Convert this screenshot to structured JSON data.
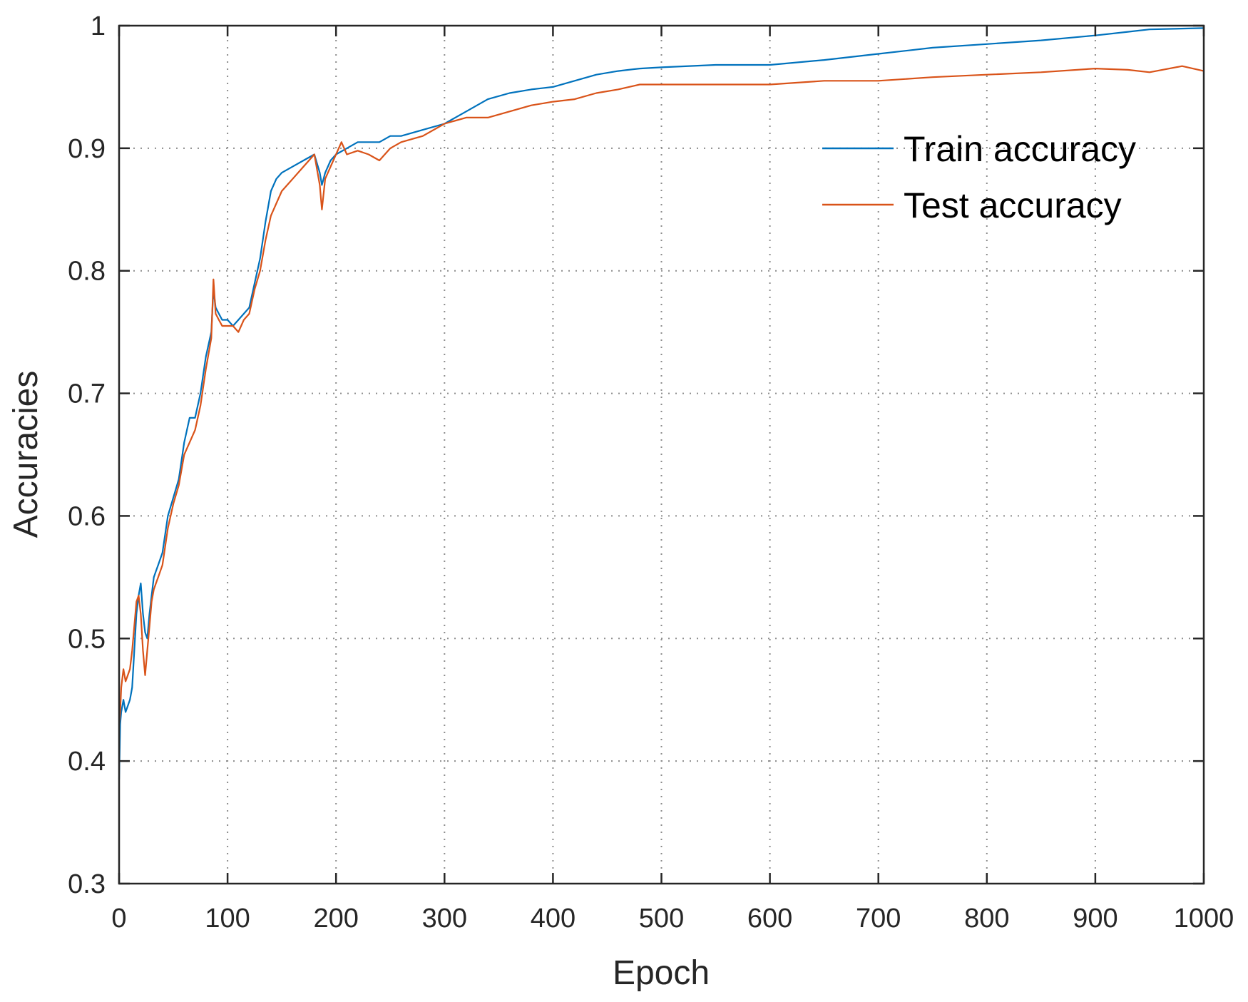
{
  "chart_data": {
    "type": "line",
    "title": "",
    "xlabel": "Epoch",
    "ylabel": "Accuracies",
    "xlim": [
      0,
      1000
    ],
    "ylim": [
      0.3,
      1
    ],
    "xticks": [
      0,
      100,
      200,
      300,
      400,
      500,
      600,
      700,
      800,
      900,
      1000
    ],
    "yticks": [
      0.3,
      0.4,
      0.5,
      0.6,
      0.7,
      0.8,
      0.9,
      1
    ],
    "grid": true,
    "legend_position": "top-right",
    "series": [
      {
        "name": "Train accuracy",
        "color": "#0072bd",
        "x": [
          0,
          1,
          2,
          4,
          6,
          8,
          10,
          12,
          14,
          16,
          18,
          20,
          22,
          24,
          26,
          28,
          30,
          32,
          34,
          36,
          38,
          40,
          45,
          50,
          55,
          60,
          65,
          70,
          75,
          80,
          85,
          87,
          89,
          92,
          95,
          100,
          105,
          110,
          115,
          120,
          125,
          130,
          135,
          140,
          145,
          150,
          160,
          170,
          180,
          185,
          187,
          190,
          195,
          200,
          210,
          220,
          230,
          240,
          250,
          260,
          280,
          300,
          320,
          340,
          360,
          380,
          400,
          420,
          440,
          460,
          480,
          500,
          550,
          600,
          650,
          700,
          750,
          800,
          850,
          900,
          930,
          950,
          1000
        ],
        "values": [
          0.385,
          0.43,
          0.44,
          0.45,
          0.44,
          0.445,
          0.45,
          0.46,
          0.49,
          0.52,
          0.535,
          0.545,
          0.52,
          0.505,
          0.5,
          0.52,
          0.535,
          0.55,
          0.555,
          0.56,
          0.565,
          0.57,
          0.6,
          0.615,
          0.63,
          0.66,
          0.68,
          0.68,
          0.7,
          0.73,
          0.75,
          0.785,
          0.77,
          0.765,
          0.76,
          0.76,
          0.755,
          0.76,
          0.765,
          0.77,
          0.79,
          0.81,
          0.84,
          0.865,
          0.875,
          0.88,
          0.885,
          0.89,
          0.895,
          0.88,
          0.87,
          0.88,
          0.89,
          0.895,
          0.9,
          0.905,
          0.905,
          0.905,
          0.91,
          0.91,
          0.915,
          0.92,
          0.93,
          0.94,
          0.945,
          0.948,
          0.95,
          0.955,
          0.96,
          0.963,
          0.965,
          0.966,
          0.968,
          0.968,
          0.972,
          0.977,
          0.982,
          0.985,
          0.988,
          0.992,
          0.995,
          0.997,
          0.998
        ]
      },
      {
        "name": "Test accuracy",
        "color": "#d95319",
        "x": [
          0,
          1,
          2,
          4,
          6,
          8,
          10,
          12,
          14,
          16,
          18,
          20,
          22,
          24,
          26,
          28,
          30,
          32,
          34,
          36,
          38,
          40,
          45,
          50,
          55,
          60,
          65,
          70,
          75,
          80,
          85,
          87,
          89,
          92,
          95,
          100,
          105,
          110,
          115,
          120,
          125,
          130,
          135,
          140,
          145,
          150,
          160,
          170,
          180,
          185,
          187,
          190,
          195,
          200,
          205,
          210,
          220,
          230,
          240,
          250,
          260,
          280,
          300,
          320,
          340,
          360,
          380,
          400,
          420,
          440,
          460,
          480,
          500,
          550,
          600,
          650,
          700,
          750,
          800,
          850,
          900,
          930,
          950,
          980,
          1000
        ],
        "values": [
          0.43,
          0.44,
          0.46,
          0.475,
          0.465,
          0.47,
          0.475,
          0.49,
          0.51,
          0.53,
          0.535,
          0.52,
          0.49,
          0.47,
          0.49,
          0.51,
          0.53,
          0.54,
          0.545,
          0.55,
          0.555,
          0.56,
          0.59,
          0.61,
          0.625,
          0.65,
          0.66,
          0.67,
          0.69,
          0.72,
          0.745,
          0.793,
          0.765,
          0.76,
          0.755,
          0.755,
          0.755,
          0.75,
          0.76,
          0.765,
          0.785,
          0.8,
          0.825,
          0.845,
          0.855,
          0.865,
          0.875,
          0.885,
          0.895,
          0.87,
          0.85,
          0.875,
          0.885,
          0.895,
          0.905,
          0.895,
          0.898,
          0.895,
          0.89,
          0.9,
          0.905,
          0.91,
          0.92,
          0.925,
          0.925,
          0.93,
          0.935,
          0.938,
          0.94,
          0.945,
          0.948,
          0.952,
          0.952,
          0.952,
          0.952,
          0.955,
          0.955,
          0.958,
          0.96,
          0.962,
          0.965,
          0.964,
          0.962,
          0.967,
          0.963
        ]
      }
    ]
  }
}
